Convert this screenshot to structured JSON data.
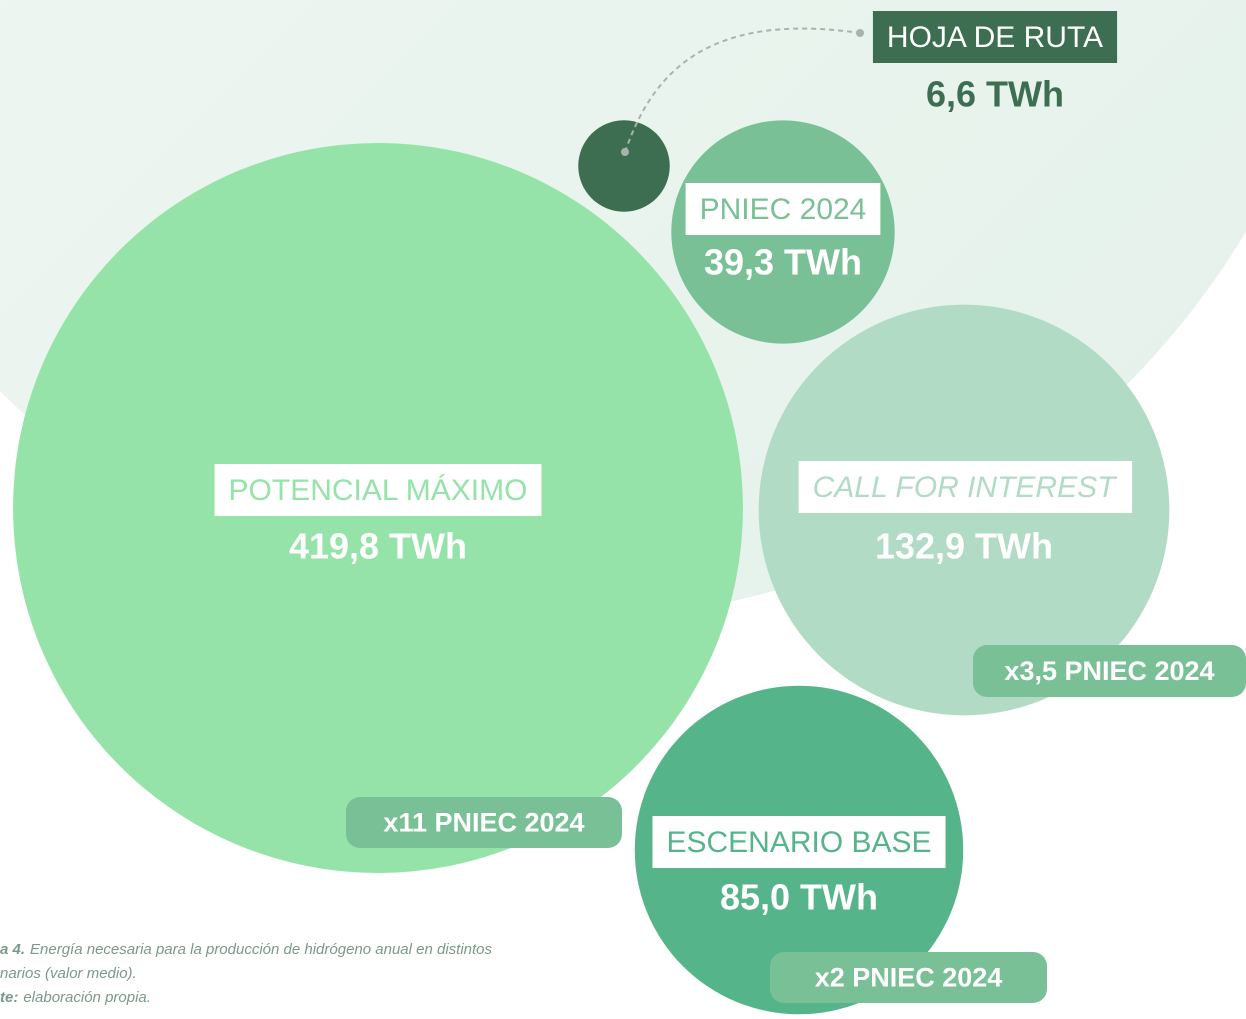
{
  "chart_data": {
    "type": "bubble",
    "categories": [
      "POTENCIAL MÁXIMO",
      "CALL FOR INTEREST",
      "ESCENARIO BASE",
      "PNIEC 2024",
      "HOJA DE RUTA"
    ],
    "values": [
      419.8,
      132.9,
      85.0,
      39.3,
      6.6
    ],
    "value_labels": [
      "419,8 TWh",
      "132,9 TWh",
      "85,0 TWh",
      "39,3 TWh",
      "6,6 TWh"
    ],
    "colors": [
      "#95e3a9",
      "#b1dbc4",
      "#55b48a",
      "#79c096",
      "#3e6e51"
    ],
    "badges": [
      "x11 PNIEC 2024",
      "x3,5 PNIEC 2024",
      "x2 PNIEC 2024",
      null,
      null
    ],
    "caption": [
      {
        "bold": "a 4.",
        "text": "Energía necesaria para la producción de hidrógeno anual en distintos"
      },
      {
        "text": "narios (valor medio)."
      },
      {
        "bold": "te:",
        "text": "elaboración propia."
      }
    ]
  }
}
